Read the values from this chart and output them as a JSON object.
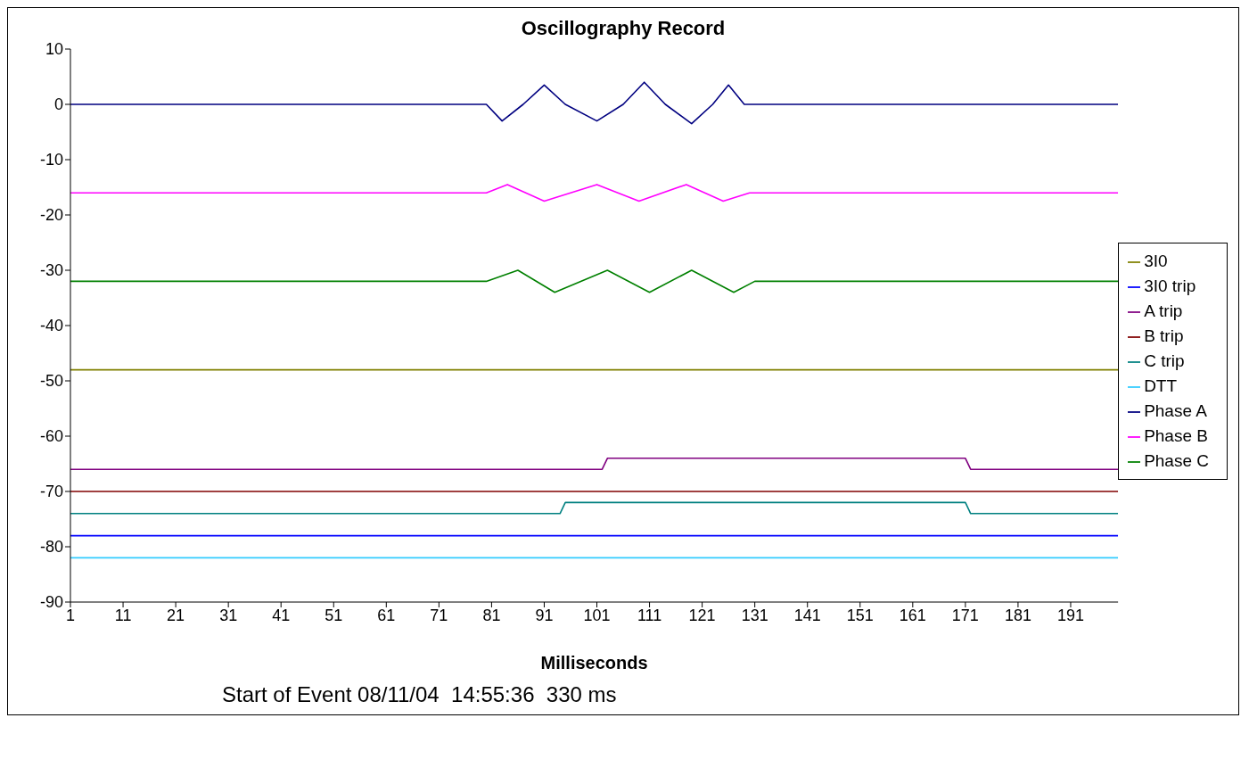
{
  "chart_data": {
    "type": "line",
    "title": "Oscillography Record",
    "xlabel": "Milliseconds",
    "annotations": [
      "Start of Event 08/11/04  14:55:36  330 ms"
    ],
    "xlim": [
      1,
      200
    ],
    "xticks": [
      1,
      11,
      21,
      31,
      41,
      51,
      61,
      71,
      81,
      91,
      101,
      111,
      121,
      131,
      141,
      151,
      161,
      171,
      181,
      191
    ],
    "ylim": [
      -90,
      10
    ],
    "yticks": [
      10,
      0,
      -10,
      -20,
      -30,
      -40,
      -50,
      -60,
      -70,
      -80,
      -90
    ],
    "grid": false,
    "legend": "right",
    "marker": "none",
    "line_style": "solid",
    "series": [
      {
        "name": "Phase A",
        "color": "#000080",
        "x": [
          1,
          80,
          83,
          87,
          91,
          95,
          101,
          106,
          110,
          114,
          119,
          123,
          126,
          129,
          131,
          200
        ],
        "values": [
          0,
          0,
          -3,
          0,
          3.5,
          0,
          -3,
          0,
          4,
          0,
          -3.5,
          0,
          3.5,
          0,
          0,
          0
        ]
      },
      {
        "name": "Phase B",
        "color": "#ff00ff",
        "x": [
          1,
          80,
          84,
          91,
          101,
          109,
          118,
          125,
          130,
          200
        ],
        "values": [
          -16,
          -16,
          -14.5,
          -17.5,
          -14.5,
          -17.5,
          -14.5,
          -17.5,
          -16,
          -16
        ]
      },
      {
        "name": "Phase C",
        "color": "#008000",
        "x": [
          1,
          80,
          86,
          93,
          103,
          111,
          119,
          127,
          131,
          200
        ],
        "values": [
          -32,
          -32,
          -30,
          -34,
          -30,
          -34,
          -30,
          -34,
          -32,
          -32
        ]
      },
      {
        "name": "3I0",
        "color": "#808000",
        "x": [
          1,
          200
        ],
        "values": [
          -48,
          -48
        ]
      },
      {
        "name": "A trip",
        "color": "#800080",
        "x": [
          1,
          102,
          103,
          171,
          172,
          200
        ],
        "values": [
          -66,
          -66,
          -64,
          -64,
          -66,
          -66
        ]
      },
      {
        "name": "B trip",
        "color": "#800000",
        "x": [
          1,
          200
        ],
        "values": [
          -70,
          -70
        ]
      },
      {
        "name": "C trip",
        "color": "#008080",
        "x": [
          1,
          94,
          95,
          171,
          172,
          200
        ],
        "values": [
          -74,
          -74,
          -72,
          -72,
          -74,
          -74
        ]
      },
      {
        "name": "3I0 trip",
        "color": "#0000ff",
        "x": [
          1,
          200
        ],
        "values": [
          -78,
          -78
        ]
      },
      {
        "name": "DTT",
        "color": "#33ccff",
        "x": [
          1,
          200
        ],
        "values": [
          -82,
          -82
        ]
      }
    ]
  }
}
